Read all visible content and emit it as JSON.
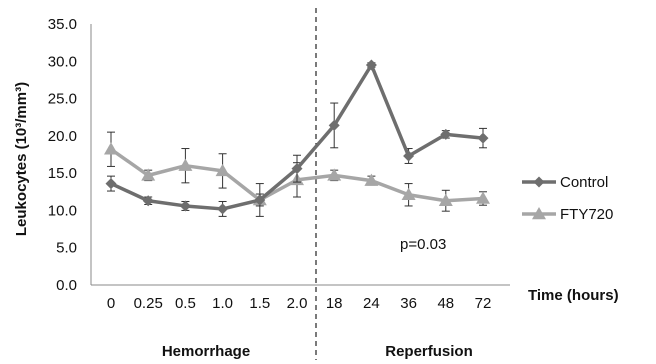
{
  "chart_data": {
    "type": "line",
    "title": "",
    "xlabel": "Time (hours)",
    "ylabel": "Leukocytes (10³/mm³)",
    "ylim": [
      0,
      35
    ],
    "y_ticks": [
      "0.0",
      "5.0",
      "10.0",
      "15.0",
      "20.0",
      "25.0",
      "30.0",
      "35.0"
    ],
    "categories": [
      "0",
      "0.25",
      "0.5",
      "1.0",
      "1.5",
      "2.0",
      "18",
      "24",
      "36",
      "48",
      "72"
    ],
    "phases": [
      {
        "label": "Hemorrhage"
      },
      {
        "label": "Reperfusion"
      }
    ],
    "grid": false,
    "legend": "right",
    "annotation": "p=0.03",
    "series": [
      {
        "name": "Control",
        "color": "#6e6e6e",
        "marker": "diamond",
        "values": [
          13.6,
          11.3,
          10.6,
          10.2,
          11.4,
          15.6,
          21.4,
          29.5,
          17.3,
          20.2,
          19.7
        ],
        "errors": [
          1.0,
          0.5,
          0.6,
          1.0,
          0.8,
          1.8,
          3.0,
          0.3,
          1.0,
          0.5,
          1.3
        ]
      },
      {
        "name": "FTY720",
        "color": "#a6a6a6",
        "marker": "triangle",
        "values": [
          18.2,
          14.7,
          16.0,
          15.3,
          11.4,
          14.1,
          14.7,
          14.0,
          12.1,
          11.3,
          11.6
        ],
        "errors": [
          2.3,
          0.7,
          2.3,
          2.3,
          2.2,
          2.3,
          0.7,
          0.6,
          1.5,
          1.4,
          0.9
        ]
      }
    ]
  }
}
